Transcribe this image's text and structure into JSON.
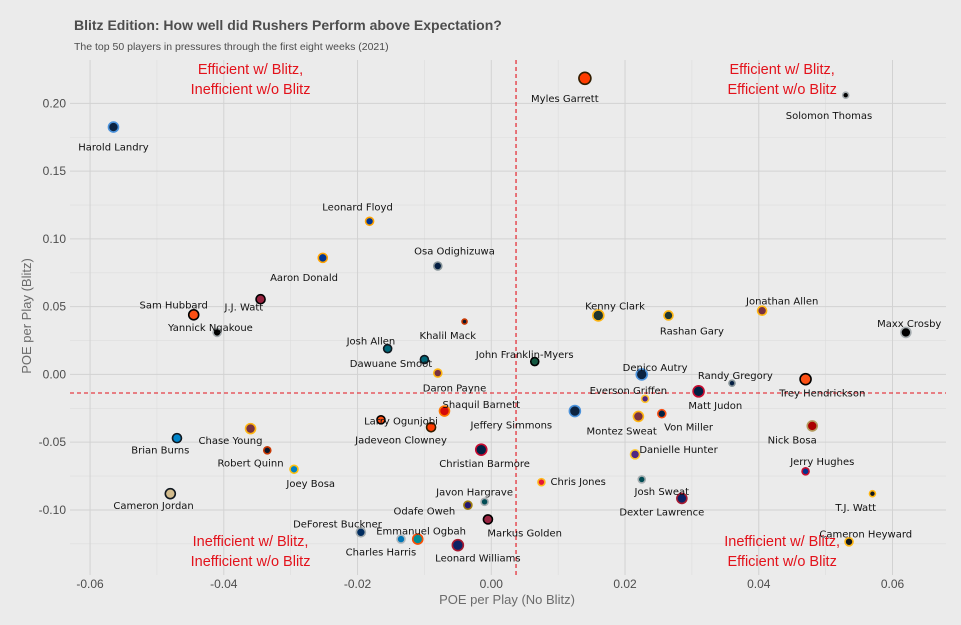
{
  "chart_data": {
    "type": "scatter",
    "title": "Blitz Edition: How well did Rushers Perform above Expectation?",
    "subtitle": "The top 50 players in pressures through the first eight weeks (2021)",
    "xlabel": "POE per Play (No Blitz)",
    "ylabel": "POE per Play (Blitz)",
    "xlim": [
      -0.063,
      0.068
    ],
    "ylim": [
      -0.148,
      0.232
    ],
    "x_ticks": [
      "-0.06",
      "-0.04",
      "-0.02",
      "0.00",
      "0.02",
      "0.04",
      "0.06"
    ],
    "x_tick_values": [
      -0.06,
      -0.04,
      -0.02,
      0.0,
      0.02,
      0.04,
      0.06
    ],
    "y_ticks": [
      "-0.10",
      "-0.05",
      "0.00",
      "0.05",
      "0.10",
      "0.15",
      "0.20"
    ],
    "y_tick_values": [
      -0.1,
      -0.05,
      0.0,
      0.05,
      0.1,
      0.15,
      0.2
    ],
    "grid": true,
    "reference_lines": {
      "x": 0.0037,
      "y": -0.0137,
      "color": "#e3121b"
    },
    "quadrant_labels": [
      {
        "text": [
          "Efficient w/ Blitz,",
          "Inefficient w/o Blitz"
        ],
        "position": "top-left"
      },
      {
        "text": [
          "Efficient w/ Blitz,",
          "Efficient w/o Blitz"
        ],
        "position": "top-right"
      },
      {
        "text": [
          "Inefficient w/ Blitz,",
          "Inefficient w/o Blitz"
        ],
        "position": "bottom-left"
      },
      {
        "text": [
          "Inefficient w/ Blitz,",
          "Efficient w/o Blitz"
        ],
        "position": "bottom-right"
      }
    ],
    "points": [
      {
        "name": "Myles Garrett",
        "x": 0.014,
        "y": 0.2185,
        "fill": "#ff3c00",
        "stroke": "#311d00",
        "size": 6,
        "lx": 0.011,
        "ly": 0.204
      },
      {
        "name": "Solomon Thomas",
        "x": 0.053,
        "y": 0.206,
        "fill": "#000000",
        "stroke": "#a5acaf",
        "size": 3,
        "lx": 0.0505,
        "ly": 0.1915
      },
      {
        "name": "Harold Landry",
        "x": -0.0565,
        "y": 0.1825,
        "fill": "#0c2340",
        "stroke": "#4b92db",
        "size": 5,
        "lx": -0.0565,
        "ly": 0.168
      },
      {
        "name": "Leonard Floyd",
        "x": -0.0182,
        "y": 0.113,
        "fill": "#003594",
        "stroke": "#ffa300",
        "size": 4,
        "lx": -0.02,
        "ly": 0.124
      },
      {
        "name": "Aaron Donald",
        "x": -0.0252,
        "y": 0.086,
        "fill": "#003594",
        "stroke": "#ffa300",
        "size": 4.5,
        "lx": -0.028,
        "ly": 0.072
      },
      {
        "name": "Osa Odighizuwa",
        "x": -0.008,
        "y": 0.08,
        "fill": "#041e42",
        "stroke": "#869397",
        "size": 4,
        "lx": -0.0055,
        "ly": 0.0915
      },
      {
        "name": "Sam Hubbard",
        "x": -0.0445,
        "y": 0.044,
        "fill": "#fb4f14",
        "stroke": "#000000",
        "size": 5,
        "lx": -0.0475,
        "ly": 0.0515
      },
      {
        "name": "J.J. Watt",
        "x": -0.0345,
        "y": 0.0555,
        "fill": "#97233f",
        "stroke": "#000000",
        "size": 4.5,
        "lx": -0.037,
        "ly": 0.05
      },
      {
        "name": "Yannick Ngakoue",
        "x": -0.041,
        "y": 0.031,
        "fill": "#000000",
        "stroke": "#a5acaf",
        "size": 4,
        "lx": -0.042,
        "ly": 0.035
      },
      {
        "name": "Khalil Mack",
        "x": -0.004,
        "y": 0.039,
        "fill": "#0b162a",
        "stroke": "#c83803",
        "size": 2.5,
        "lx": -0.0065,
        "ly": 0.029
      },
      {
        "name": "Josh Allen",
        "x": -0.0155,
        "y": 0.019,
        "fill": "#006778",
        "stroke": "#101820",
        "size": 4,
        "lx": -0.018,
        "ly": 0.025
      },
      {
        "name": "Dawuane Smoot",
        "x": -0.01,
        "y": 0.011,
        "fill": "#006778",
        "stroke": "#101820",
        "size": 4,
        "lx": -0.015,
        "ly": 0.0085
      },
      {
        "name": "Daron Payne",
        "x": -0.008,
        "y": 0.001,
        "fill": "#773141",
        "stroke": "#ffb612",
        "size": 4,
        "lx": -0.0055,
        "ly": -0.0095
      },
      {
        "name": "John Franklin-Myers",
        "x": 0.0065,
        "y": 0.0095,
        "fill": "#125740",
        "stroke": "#000000",
        "size": 4,
        "lx": 0.005,
        "ly": 0.015
      },
      {
        "name": "Shaquil Barnett",
        "x": -0.007,
        "y": -0.027,
        "fill": "#d50a0a",
        "stroke": "#ff7900",
        "size": 5,
        "lx": -0.0015,
        "ly": -0.022
      },
      {
        "name": "Larry Ogunjobi",
        "x": -0.0165,
        "y": -0.0335,
        "fill": "#fb4f14",
        "stroke": "#000000",
        "size": 4,
        "lx": -0.0135,
        "ly": -0.034
      },
      {
        "name": "Jadeveon Clowney",
        "x": -0.009,
        "y": -0.039,
        "fill": "#ff3c00",
        "stroke": "#311d00",
        "size": 4.5,
        "lx": -0.0135,
        "ly": -0.048
      },
      {
        "name": "Jeffery Simmons",
        "x": 0.0125,
        "y": -0.027,
        "fill": "#0c2340",
        "stroke": "#4b92db",
        "size": 5.5,
        "lx": 0.003,
        "ly": -0.037
      },
      {
        "name": "Christian Barmore",
        "x": -0.0015,
        "y": -0.0555,
        "fill": "#002244",
        "stroke": "#c60c30",
        "size": 5.5,
        "lx": -0.001,
        "ly": -0.0655
      },
      {
        "name": "Chase Young",
        "x": -0.036,
        "y": -0.04,
        "fill": "#773141",
        "stroke": "#ffb612",
        "size": 5,
        "lx": -0.039,
        "ly": -0.0485
      },
      {
        "name": "Robert Quinn",
        "x": -0.0335,
        "y": -0.056,
        "fill": "#0b162a",
        "stroke": "#c83803",
        "size": 3.5,
        "lx": -0.036,
        "ly": -0.065
      },
      {
        "name": "Joey Bosa",
        "x": -0.0295,
        "y": -0.07,
        "fill": "#0080c6",
        "stroke": "#ffc20e",
        "size": 4,
        "lx": -0.027,
        "ly": -0.08
      },
      {
        "name": "Brian Burns",
        "x": -0.047,
        "y": -0.047,
        "fill": "#0085ca",
        "stroke": "#101820",
        "size": 4.5,
        "lx": -0.0495,
        "ly": -0.0555
      },
      {
        "name": "Cameron Jordan",
        "x": -0.048,
        "y": -0.088,
        "fill": "#d3bc8d",
        "stroke": "#101820",
        "size": 5,
        "lx": -0.0505,
        "ly": -0.0965
      },
      {
        "name": "Kenny Clark",
        "x": 0.016,
        "y": 0.0435,
        "fill": "#203731",
        "stroke": "#ffb612",
        "size": 5.5,
        "lx": 0.0185,
        "ly": 0.051
      },
      {
        "name": "Rashan Gary",
        "x": 0.0265,
        "y": 0.0435,
        "fill": "#203731",
        "stroke": "#ffb612",
        "size": 4.5,
        "lx": 0.03,
        "ly": 0.0325
      },
      {
        "name": "Jonathan Allen",
        "x": 0.0405,
        "y": 0.047,
        "fill": "#773141",
        "stroke": "#ffb612",
        "size": 4.5,
        "lx": 0.0435,
        "ly": 0.0545
      },
      {
        "name": "Maxx Crosby",
        "x": 0.062,
        "y": 0.031,
        "fill": "#000000",
        "stroke": "#a5acaf",
        "size": 5,
        "lx": 0.0625,
        "ly": 0.038
      },
      {
        "name": "Denico Autry",
        "x": 0.0225,
        "y": 0.0,
        "fill": "#0c2340",
        "stroke": "#4b92db",
        "size": 5.5,
        "lx": 0.0245,
        "ly": 0.0055
      },
      {
        "name": "Randy Gregory",
        "x": 0.036,
        "y": -0.0065,
        "fill": "#041e42",
        "stroke": "#869397",
        "size": 3,
        "lx": 0.0365,
        "ly": -0.0005
      },
      {
        "name": "Trey Hendrickson",
        "x": 0.047,
        "y": -0.0035,
        "fill": "#fb4f14",
        "stroke": "#000000",
        "size": 5.5,
        "lx": 0.0495,
        "ly": -0.0135
      },
      {
        "name": "Everson Griffen",
        "x": 0.023,
        "y": -0.018,
        "fill": "#4f2683",
        "stroke": "#ffc62f",
        "size": 3.5,
        "lx": 0.0205,
        "ly": -0.0115
      },
      {
        "name": "Matt Judon",
        "x": 0.031,
        "y": -0.0125,
        "fill": "#002244",
        "stroke": "#c60c30",
        "size": 5.5,
        "lx": 0.0335,
        "ly": -0.0225
      },
      {
        "name": "Montez Sweat",
        "x": 0.022,
        "y": -0.031,
        "fill": "#773141",
        "stroke": "#ffb612",
        "size": 5,
        "lx": 0.0195,
        "ly": -0.0415
      },
      {
        "name": "Von Miller",
        "x": 0.0255,
        "y": -0.029,
        "fill": "#002244",
        "stroke": "#fb4f14",
        "size": 4,
        "lx": 0.0295,
        "ly": -0.0385
      },
      {
        "name": "Nick Bosa",
        "x": 0.048,
        "y": -0.038,
        "fill": "#aa0000",
        "stroke": "#b3995d",
        "size": 5,
        "lx": 0.045,
        "ly": -0.048
      },
      {
        "name": "Danielle Hunter",
        "x": 0.0215,
        "y": -0.059,
        "fill": "#4f2683",
        "stroke": "#ffc62f",
        "size": 4.5,
        "lx": 0.028,
        "ly": -0.055
      },
      {
        "name": "Josh Sweat",
        "x": 0.0225,
        "y": -0.0775,
        "fill": "#004c54",
        "stroke": "#a5acaf",
        "size": 3.5,
        "lx": 0.0255,
        "ly": -0.086
      },
      {
        "name": "Dexter Lawrence",
        "x": 0.0285,
        "y": -0.0915,
        "fill": "#0b2265",
        "stroke": "#a71930",
        "size": 5,
        "lx": 0.0255,
        "ly": -0.101
      },
      {
        "name": "Jerry Hughes",
        "x": 0.047,
        "y": -0.0715,
        "fill": "#00338d",
        "stroke": "#c60c30",
        "size": 3.5,
        "lx": 0.0495,
        "ly": -0.064
      },
      {
        "name": "T.J. Watt",
        "x": 0.057,
        "y": -0.088,
        "fill": "#101820",
        "stroke": "#ffb612",
        "size": 3,
        "lx": 0.0545,
        "ly": -0.098
      },
      {
        "name": "Cameron Heyward",
        "x": 0.0535,
        "y": -0.1235,
        "fill": "#101820",
        "stroke": "#ffb612",
        "size": 4,
        "lx": 0.056,
        "ly": -0.1175
      },
      {
        "name": "Chris Jones",
        "x": 0.0075,
        "y": -0.0795,
        "fill": "#e31837",
        "stroke": "#ffb81c",
        "size": 3.5,
        "lx": 0.013,
        "ly": -0.0785
      },
      {
        "name": "Javon Hargrave",
        "x": -0.001,
        "y": -0.094,
        "fill": "#004c54",
        "stroke": "#a5acaf",
        "size": 3.5,
        "lx": -0.0025,
        "ly": -0.0865
      },
      {
        "name": "Odafe Oweh",
        "x": -0.0035,
        "y": -0.0965,
        "fill": "#241773",
        "stroke": "#9e7c0c",
        "size": 4,
        "lx": -0.01,
        "ly": -0.1005
      },
      {
        "name": "Markus Golden",
        "x": -0.0005,
        "y": -0.107,
        "fill": "#97233f",
        "stroke": "#000000",
        "size": 4.5,
        "lx": 0.005,
        "ly": -0.1165
      },
      {
        "name": "DeForest Buckner",
        "x": -0.0195,
        "y": -0.1165,
        "fill": "#002c5f",
        "stroke": "#a2aaad",
        "size": 4.5,
        "lx": -0.023,
        "ly": -0.11
      },
      {
        "name": "Emmanuel Ogbah",
        "x": -0.011,
        "y": -0.1215,
        "fill": "#008e97",
        "stroke": "#fc4c02",
        "size": 5,
        "lx": -0.0105,
        "ly": -0.115
      },
      {
        "name": "Charles Harris",
        "x": -0.0135,
        "y": -0.1215,
        "fill": "#0076b6",
        "stroke": "#b0b7bc",
        "size": 4,
        "lx": -0.0165,
        "ly": -0.1305
      },
      {
        "name": "Leonard Williams",
        "x": -0.005,
        "y": -0.126,
        "fill": "#0b2265",
        "stroke": "#a71930",
        "size": 5.5,
        "lx": -0.002,
        "ly": -0.135
      }
    ]
  }
}
